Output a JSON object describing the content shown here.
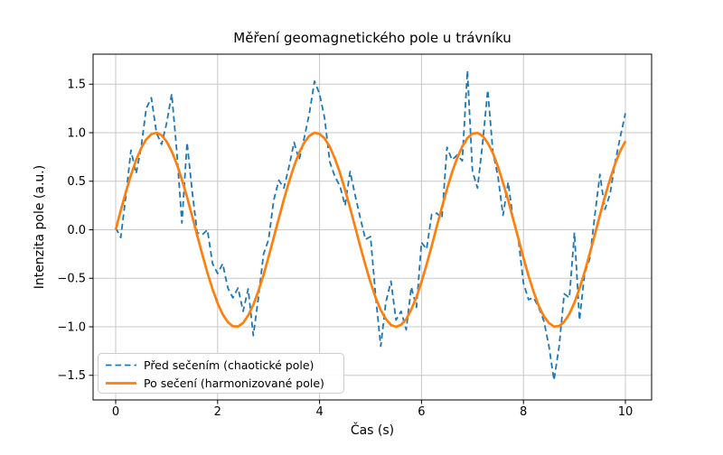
{
  "chart_data": {
    "type": "line",
    "title": "Měření geomagnetického pole u trávníku",
    "xlabel": "Čas (s)",
    "ylabel": "Intenzita pole (a.u.)",
    "xlim": [
      -0.5,
      10.5
    ],
    "ylim": [
      -1.75,
      1.81
    ],
    "grid": true,
    "legend_position": "lower left",
    "axes_background": "#ffffff",
    "grid_color": "#c8c8c8",
    "spine_color": "#000000",
    "xticks": {
      "values": [
        0,
        2,
        4,
        6,
        8,
        10
      ],
      "labels": [
        "0",
        "2",
        "4",
        "6",
        "8",
        "10"
      ]
    },
    "yticks": {
      "values": [
        1.5,
        1.0,
        0.5,
        0.0,
        -0.5,
        -1.0,
        -1.5
      ],
      "labels": [
        "1.5",
        "1.0",
        "0.5",
        "0.0",
        "−0.5",
        "−1.0",
        "−1.5"
      ]
    },
    "x": [
      0.0,
      0.1,
      0.2,
      0.3,
      0.4,
      0.5,
      0.6,
      0.7,
      0.8,
      0.9,
      1.0,
      1.1,
      1.2,
      1.3,
      1.4,
      1.5,
      1.6,
      1.7,
      1.8,
      1.9,
      2.0,
      2.1,
      2.2,
      2.3,
      2.4,
      2.5,
      2.6,
      2.7,
      2.8,
      2.9,
      3.0,
      3.1,
      3.2,
      3.3,
      3.4,
      3.5,
      3.6,
      3.7,
      3.8,
      3.9,
      4.0,
      4.1,
      4.2,
      4.3,
      4.4,
      4.5,
      4.6,
      4.7,
      4.8,
      4.9,
      5.0,
      5.1,
      5.2,
      5.3,
      5.4,
      5.5,
      5.6,
      5.7,
      5.8,
      5.9,
      6.0,
      6.1,
      6.2,
      6.3,
      6.4,
      6.5,
      6.6,
      6.7,
      6.8,
      6.9,
      7.0,
      7.1,
      7.2,
      7.3,
      7.4,
      7.5,
      7.6,
      7.7,
      7.8,
      7.9,
      8.0,
      8.1,
      8.2,
      8.3,
      8.4,
      8.5,
      8.6,
      8.7,
      8.8,
      8.9,
      9.0,
      9.1,
      9.2,
      9.3,
      9.4,
      9.5,
      9.6,
      9.7,
      9.8,
      9.9,
      10.0
    ],
    "series": [
      {
        "name": "Před sečením (chaotické pole)",
        "color": "#1f77b4",
        "line_style": "dashed",
        "linewidth": 1.8,
        "values": [
          0.02,
          -0.08,
          0.35,
          0.82,
          0.58,
          0.85,
          1.25,
          1.36,
          1.0,
          0.88,
          1.1,
          1.4,
          0.8,
          0.07,
          0.9,
          0.4,
          -0.03,
          -0.05,
          0.0,
          -0.35,
          -0.45,
          -0.35,
          -0.6,
          -0.7,
          -0.6,
          -0.84,
          -0.61,
          -1.09,
          -0.7,
          -0.25,
          -0.1,
          0.3,
          0.51,
          0.43,
          0.65,
          0.9,
          0.72,
          0.95,
          1.2,
          1.53,
          1.4,
          1.15,
          0.7,
          0.55,
          0.45,
          0.25,
          0.6,
          0.35,
          0.12,
          -0.1,
          -0.07,
          -0.68,
          -1.2,
          -0.75,
          -0.53,
          -0.93,
          -0.84,
          -1.03,
          -0.59,
          -0.8,
          -0.13,
          -0.2,
          0.16,
          0.17,
          0.12,
          0.85,
          0.72,
          0.77,
          0.71,
          1.64,
          0.6,
          0.43,
          0.9,
          1.44,
          0.8,
          0.55,
          0.15,
          0.49,
          0.1,
          -0.1,
          -0.55,
          -0.72,
          -0.7,
          -0.8,
          -0.94,
          -1.2,
          -1.55,
          -1.2,
          -0.66,
          -0.7,
          -0.03,
          -0.93,
          -0.45,
          -0.3,
          0.15,
          0.57,
          0.21,
          0.37,
          0.7,
          0.96,
          1.2
        ]
      },
      {
        "name": "Po sečení (harmonizované pole)",
        "color": "#ff7f0e",
        "line_style": "solid",
        "linewidth": 2.7,
        "values": [
          0.0,
          0.199,
          0.389,
          0.565,
          0.717,
          0.841,
          0.932,
          0.985,
          1.0,
          0.974,
          0.909,
          0.808,
          0.675,
          0.516,
          0.335,
          0.141,
          -0.058,
          -0.256,
          -0.443,
          -0.612,
          -0.757,
          -0.872,
          -0.952,
          -0.994,
          -0.996,
          -0.959,
          -0.883,
          -0.773,
          -0.631,
          -0.465,
          -0.279,
          -0.083,
          0.117,
          0.312,
          0.494,
          0.657,
          0.794,
          0.899,
          0.968,
          0.999,
          0.989,
          0.941,
          0.855,
          0.734,
          0.585,
          0.412,
          0.223,
          0.025,
          -0.174,
          -0.366,
          -0.544,
          -0.699,
          -0.828,
          -0.919,
          -0.981,
          -1.0,
          -0.979,
          -0.921,
          -0.822,
          -0.694,
          -0.536,
          -0.358,
          -0.166,
          0.034,
          0.232,
          0.42,
          0.592,
          0.74,
          0.859,
          0.944,
          0.991,
          0.998,
          0.966,
          0.895,
          0.79,
          0.65,
          0.485,
          0.303,
          0.108,
          -0.092,
          -0.288,
          -0.474,
          -0.641,
          -0.783,
          -0.892,
          -0.961,
          -0.997,
          -0.993,
          -0.948,
          -0.867,
          -0.752,
          -0.604,
          -0.435,
          -0.247,
          -0.05,
          0.15,
          0.343,
          0.523,
          0.682,
          0.813,
          0.913
        ]
      }
    ]
  }
}
